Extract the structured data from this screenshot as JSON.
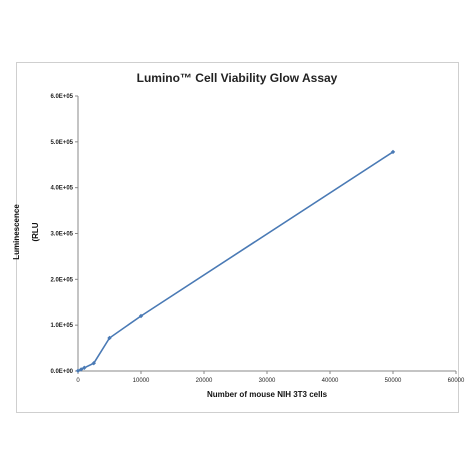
{
  "chart_data": {
    "type": "scatter",
    "title": "Lumino™ Cell Viability Glow Assay",
    "xlabel": "Number of mouse NIH 3T3 cells",
    "ylabel_line1": "Luminescence",
    "ylabel_line2": "(RLU",
    "xlim": [
      0,
      60000
    ],
    "ylim": [
      0,
      600000
    ],
    "x_ticks": [
      "0",
      "10000",
      "20000",
      "30000",
      "40000",
      "50000",
      "60000"
    ],
    "y_ticks": [
      "0.0E+00",
      "1.0E+05",
      "2.0E+05",
      "3.0E+05",
      "4.0E+05",
      "5.0E+05",
      "6.0E+05"
    ],
    "grid": false,
    "legend": "none",
    "series_color": "#4a7ab5",
    "series": [
      {
        "x": [
          0,
          500,
          1000,
          2500,
          5000,
          10000,
          50000
        ],
        "y": [
          500,
          3500,
          7000,
          17000,
          72000,
          120000,
          478000
        ]
      }
    ]
  }
}
